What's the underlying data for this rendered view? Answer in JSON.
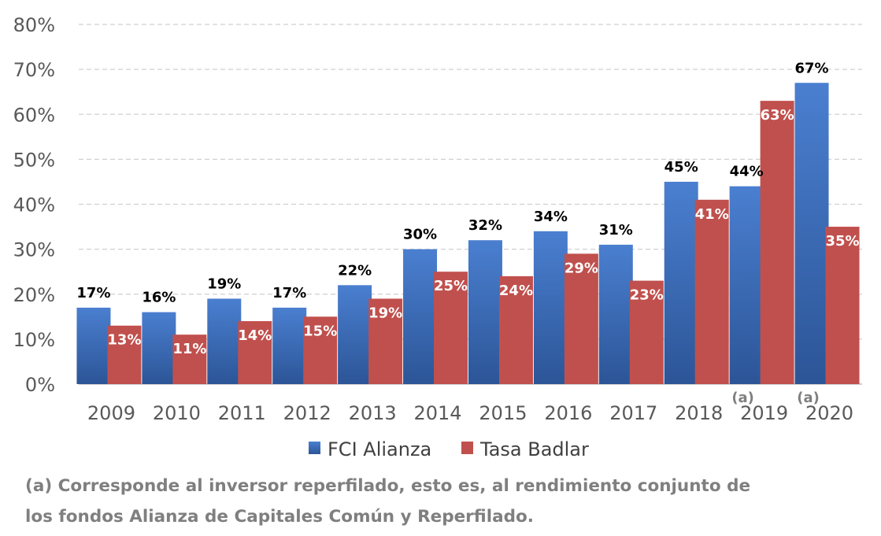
{
  "chart_data": {
    "type": "bar",
    "categories": [
      "2009",
      "2010",
      "2011",
      "2012",
      "2013",
      "2014",
      "2015",
      "2016",
      "2017",
      "2018",
      "2019",
      "2020"
    ],
    "series": [
      {
        "name": "FCI Alianza",
        "values": [
          17,
          16,
          19,
          17,
          22,
          30,
          32,
          34,
          31,
          45,
          44,
          67
        ],
        "labels": [
          "17%",
          "16%",
          "19%",
          "17%",
          "22%",
          "30%",
          "32%",
          "34%",
          "31%",
          "45%",
          "44%",
          "67%"
        ],
        "color_top": "#4a7fd0",
        "color_bottom": "#2c5597"
      },
      {
        "name": "Tasa Badlar",
        "values": [
          13,
          11,
          14,
          15,
          19,
          25,
          24,
          29,
          23,
          41,
          63,
          35
        ],
        "labels": [
          "13%",
          "11%",
          "14%",
          "15%",
          "19%",
          "25%",
          "24%",
          "29%",
          "23%",
          "41%",
          "63%",
          "35%"
        ],
        "color": "#c0504d"
      }
    ],
    "y_ticks": [
      "0%",
      "10%",
      "20%",
      "30%",
      "40%",
      "50%",
      "60%",
      "70%",
      "80%"
    ],
    "ylim": [
      0,
      80
    ],
    "grid": true,
    "legend": "bottom",
    "annotations": [
      {
        "category": "2019",
        "text": "(a)"
      },
      {
        "category": "2020",
        "text": "(a)"
      }
    ],
    "footnote": [
      "(a) Corresponde al inversor reperfilado, esto es, al rendimiento conjunto de",
      "los fondos Alianza de Capitales Común y Reperfilado."
    ]
  }
}
